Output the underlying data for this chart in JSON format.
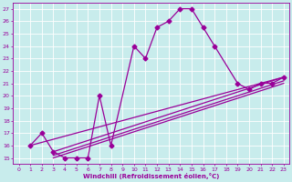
{
  "xlabel": "Windchill (Refroidissement éolien,°C)",
  "background_color": "#c8ecec",
  "line_color": "#990099",
  "grid_color": "#ffffff",
  "xlim": [
    -0.5,
    23.5
  ],
  "ylim": [
    14.5,
    27.5
  ],
  "xticks": [
    0,
    1,
    2,
    3,
    4,
    5,
    6,
    7,
    8,
    9,
    10,
    11,
    12,
    13,
    14,
    15,
    16,
    17,
    18,
    19,
    20,
    21,
    22,
    23
  ],
  "yticks": [
    15,
    16,
    17,
    18,
    19,
    20,
    21,
    22,
    23,
    24,
    25,
    26,
    27
  ],
  "curve_x": [
    1,
    2,
    3,
    4,
    5,
    6,
    7,
    8,
    10,
    11,
    12,
    13,
    14,
    15,
    16,
    17,
    19,
    20,
    21,
    22,
    23
  ],
  "curve_y": [
    16,
    17,
    15.5,
    15,
    15,
    15,
    20,
    16,
    24,
    23,
    25.5,
    26,
    27,
    27,
    25.5,
    24,
    21,
    20.5,
    21,
    21,
    21.5
  ],
  "line1_x": [
    1,
    23
  ],
  "line1_y": [
    16,
    21.5
  ],
  "line2_x": [
    3,
    23
  ],
  "line2_y": [
    15,
    21
  ],
  "line3_x": [
    3,
    23
  ],
  "line3_y": [
    15.2,
    21.2
  ],
  "line4_x": [
    3,
    23
  ],
  "line4_y": [
    15.5,
    21.5
  ],
  "marker_style": "D",
  "marker_size": 2.5,
  "line_width": 0.9
}
